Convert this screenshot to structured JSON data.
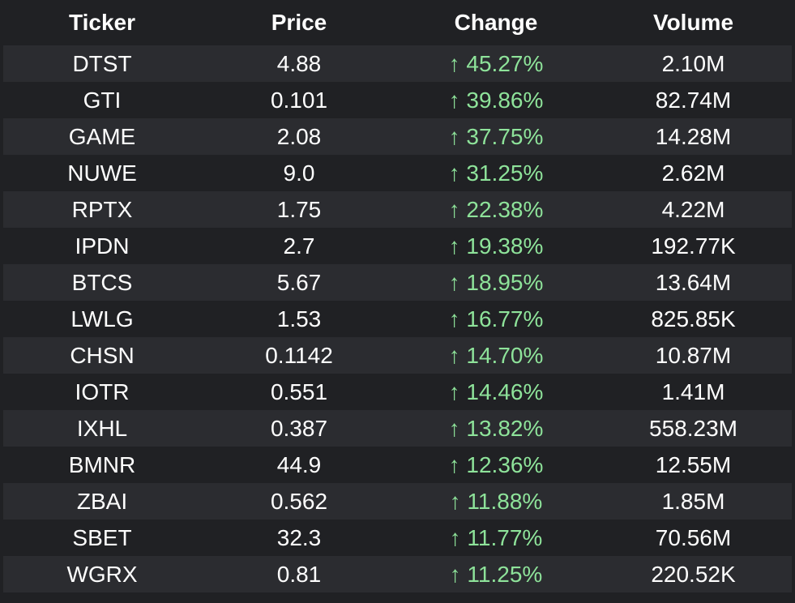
{
  "table": {
    "headers": [
      "Ticker",
      "Price",
      "Change",
      "Volume"
    ],
    "colors": {
      "background": "#202124",
      "row_alt": "#2b2c30",
      "text": "#ffffff",
      "positive_change": "#8ee39a"
    },
    "rows": [
      {
        "ticker": "DTST",
        "price": "4.88",
        "change": "↑ 45.27%",
        "volume": "2.10M"
      },
      {
        "ticker": "GTI",
        "price": "0.101",
        "change": "↑ 39.86%",
        "volume": "82.74M"
      },
      {
        "ticker": "GAME",
        "price": "2.08",
        "change": "↑ 37.75%",
        "volume": "14.28M"
      },
      {
        "ticker": "NUWE",
        "price": "9.0",
        "change": "↑ 31.25%",
        "volume": "2.62M"
      },
      {
        "ticker": "RPTX",
        "price": "1.75",
        "change": "↑ 22.38%",
        "volume": "4.22M"
      },
      {
        "ticker": "IPDN",
        "price": "2.7",
        "change": "↑ 19.38%",
        "volume": "192.77K"
      },
      {
        "ticker": "BTCS",
        "price": "5.67",
        "change": "↑ 18.95%",
        "volume": "13.64M"
      },
      {
        "ticker": "LWLG",
        "price": "1.53",
        "change": "↑ 16.77%",
        "volume": "825.85K"
      },
      {
        "ticker": "CHSN",
        "price": "0.1142",
        "change": "↑ 14.70%",
        "volume": "10.87M"
      },
      {
        "ticker": "IOTR",
        "price": "0.551",
        "change": "↑ 14.46%",
        "volume": "1.41M"
      },
      {
        "ticker": "IXHL",
        "price": "0.387",
        "change": "↑ 13.82%",
        "volume": "558.23M"
      },
      {
        "ticker": "BMNR",
        "price": "44.9",
        "change": "↑ 12.36%",
        "volume": "12.55M"
      },
      {
        "ticker": "ZBAI",
        "price": "0.562",
        "change": "↑ 11.88%",
        "volume": "1.85M"
      },
      {
        "ticker": "SBET",
        "price": "32.3",
        "change": "↑ 11.77%",
        "volume": "70.56M"
      },
      {
        "ticker": "WGRX",
        "price": "0.81",
        "change": "↑ 11.25%",
        "volume": "220.52K"
      }
    ]
  }
}
